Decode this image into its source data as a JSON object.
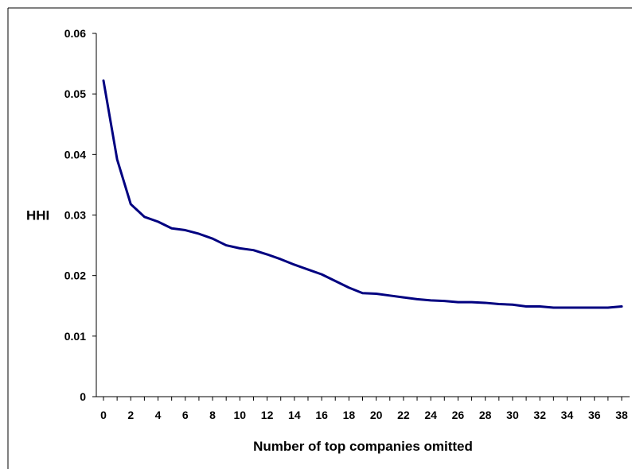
{
  "chart_data": {
    "type": "line",
    "title": "",
    "xlabel": "Number of top companies omitted",
    "ylabel": "HHI",
    "xlim": [
      0,
      38
    ],
    "ylim": [
      0,
      0.06
    ],
    "x_ticks": [
      "0",
      "2",
      "4",
      "6",
      "8",
      "10",
      "12",
      "14",
      "16",
      "18",
      "20",
      "22",
      "24",
      "26",
      "28",
      "30",
      "32",
      "34",
      "36",
      "38"
    ],
    "y_ticks": [
      "0",
      "0.01",
      "0.02",
      "0.03",
      "0.04",
      "0.05",
      "0.06"
    ],
    "grid": false,
    "legend": "none",
    "series": [
      {
        "color": "#000080",
        "x": [
          0,
          1,
          2,
          3,
          4,
          5,
          6,
          7,
          8,
          9,
          10,
          11,
          12,
          13,
          14,
          15,
          16,
          17,
          18,
          19,
          20,
          21,
          22,
          23,
          24,
          25,
          26,
          27,
          28,
          29,
          30,
          31,
          32,
          33,
          34,
          35,
          36,
          37,
          38
        ],
        "values": [
          0.0522,
          0.0392,
          0.0318,
          0.0297,
          0.0289,
          0.0278,
          0.0275,
          0.0269,
          0.0261,
          0.025,
          0.0245,
          0.0242,
          0.0235,
          0.0227,
          0.0218,
          0.021,
          0.0202,
          0.0191,
          0.018,
          0.0171,
          0.017,
          0.0167,
          0.0164,
          0.0161,
          0.0159,
          0.0158,
          0.0156,
          0.0156,
          0.0155,
          0.0153,
          0.0152,
          0.0149,
          0.0149,
          0.0147,
          0.0147,
          0.0147,
          0.0147,
          0.0147,
          0.0149
        ]
      }
    ]
  }
}
